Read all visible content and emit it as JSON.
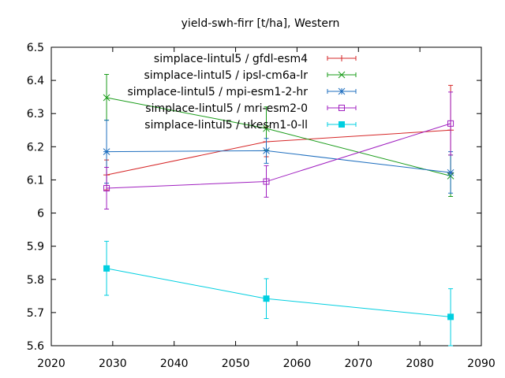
{
  "chart_data": {
    "type": "line",
    "title": "yield-swh-firr [t/ha], Western",
    "xlabel": "",
    "ylabel": "",
    "xlim": [
      2020,
      2090
    ],
    "ylim": [
      5.6,
      6.5
    ],
    "x_ticks": [
      2020,
      2030,
      2040,
      2050,
      2060,
      2070,
      2080,
      2090
    ],
    "y_ticks": [
      5.6,
      5.7,
      5.8,
      5.9,
      6,
      6.1,
      6.2,
      6.3,
      6.4,
      6.5
    ],
    "x_tick_labels": [
      "2020",
      "2030",
      "2040",
      "2050",
      "2060",
      "2070",
      "2080",
      "2090"
    ],
    "y_tick_labels": [
      "5.6",
      "5.7",
      "5.8",
      "5.9",
      "6",
      "6.1",
      "6.2",
      "6.3",
      "6.4",
      "6.5"
    ],
    "grid": false,
    "legend_position": "top-right",
    "series": [
      {
        "name": "simplace-lintul5 / gfdl-esm4",
        "color": "#d62728",
        "marker": "plus",
        "points": [
          {
            "x": 2029,
            "y": 6.115,
            "err_low": 6.07,
            "err_high": 6.16
          },
          {
            "x": 2055,
            "y": 6.215,
            "err_low": 6.17,
            "err_high": 6.26
          },
          {
            "x": 2085,
            "y": 6.25,
            "err_low": 6.12,
            "err_high": 6.385
          }
        ]
      },
      {
        "name": "simplace-lintul5 / ipsl-cm6a-lr",
        "color": "#1a9c1a",
        "marker": "x",
        "points": [
          {
            "x": 2029,
            "y": 6.348,
            "err_low": 6.28,
            "err_high": 6.418
          },
          {
            "x": 2055,
            "y": 6.255,
            "err_low": 6.19,
            "err_high": 6.32
          },
          {
            "x": 2085,
            "y": 6.112,
            "err_low": 6.05,
            "err_high": 6.175
          }
        ]
      },
      {
        "name": "simplace-lintul5 / mpi-esm1-2-hr",
        "color": "#1f6fbf",
        "marker": "star",
        "points": [
          {
            "x": 2029,
            "y": 6.185,
            "err_low": 6.09,
            "err_high": 6.28
          },
          {
            "x": 2055,
            "y": 6.188,
            "err_low": 6.15,
            "err_high": 6.225
          },
          {
            "x": 2085,
            "y": 6.122,
            "err_low": 6.06,
            "err_high": 6.185
          }
        ]
      },
      {
        "name": "simplace-lintul5 / mri-esm2-0",
        "color": "#a020c0",
        "marker": "square-open",
        "points": [
          {
            "x": 2029,
            "y": 6.075,
            "err_low": 6.012,
            "err_high": 6.138
          },
          {
            "x": 2055,
            "y": 6.095,
            "err_low": 6.048,
            "err_high": 6.143
          },
          {
            "x": 2085,
            "y": 6.27,
            "err_low": 6.175,
            "err_high": 6.365
          }
        ]
      },
      {
        "name": "simplace-lintul5 / ukesm1-0-ll",
        "color": "#00cfe0",
        "marker": "square-filled",
        "points": [
          {
            "x": 2029,
            "y": 5.833,
            "err_low": 5.752,
            "err_high": 5.915
          },
          {
            "x": 2055,
            "y": 5.742,
            "err_low": 5.682,
            "err_high": 5.802
          },
          {
            "x": 2085,
            "y": 5.687,
            "err_low": 5.6,
            "err_high": 5.772
          }
        ]
      }
    ]
  }
}
